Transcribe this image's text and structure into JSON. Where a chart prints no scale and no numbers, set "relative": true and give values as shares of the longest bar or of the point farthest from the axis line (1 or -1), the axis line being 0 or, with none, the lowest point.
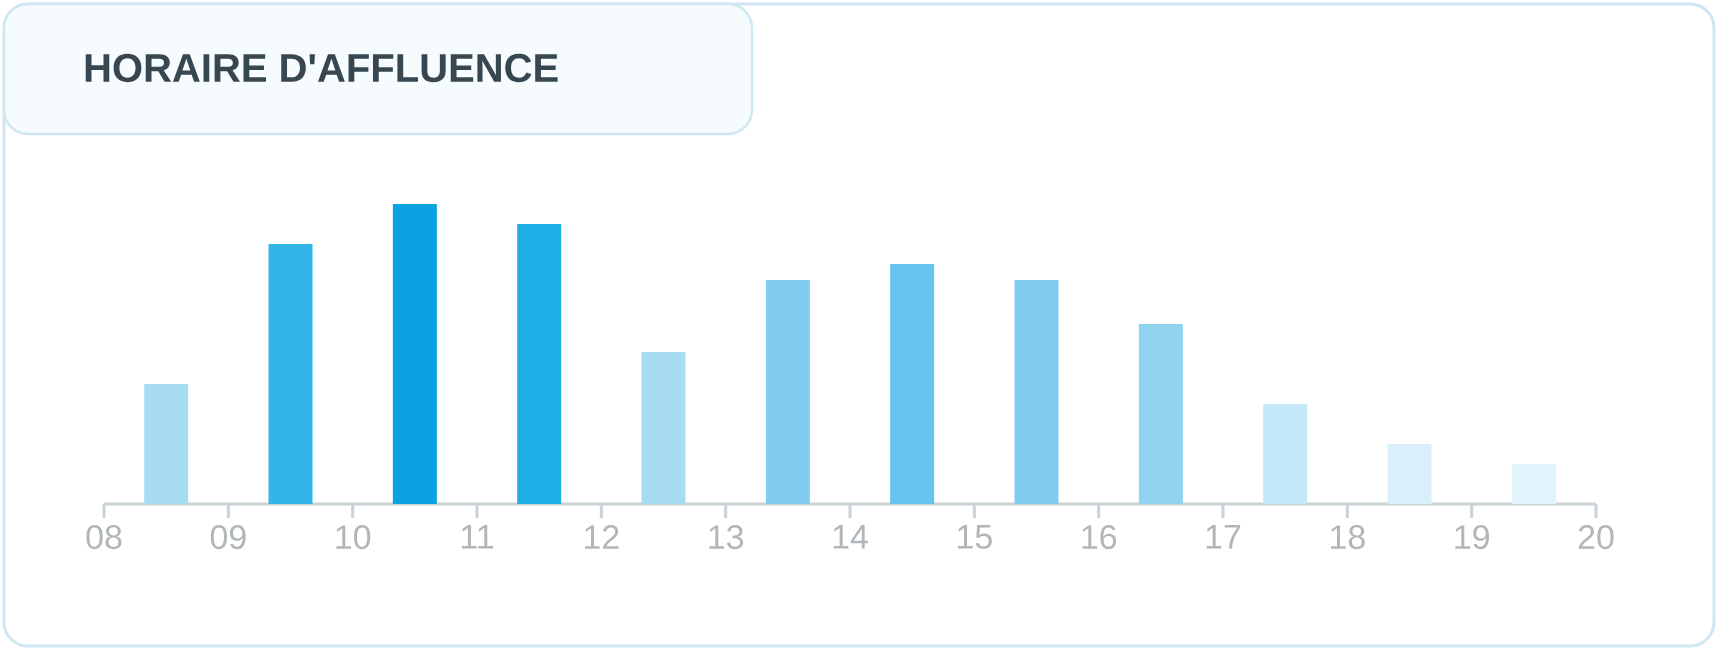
{
  "chart_data": {
    "type": "bar",
    "title": "HORAIRE D'AFFLUENCE",
    "relative": true,
    "x": [
      8.5,
      9.5,
      10.5,
      11.5,
      12.5,
      13.5,
      14.5,
      15.5,
      16.5,
      17.5,
      18.5,
      19.5
    ],
    "values": [
      0.4,
      0.867,
      1,
      0.933,
      0.507,
      0.747,
      0.8,
      0.747,
      0.6,
      0.333,
      0.2,
      0.133
    ],
    "colors": [
      "#a8dcf2",
      "#33b5e8",
      "#0aa2e0",
      "#1eaee6",
      "#a8dcf2",
      "#80cdef",
      "#66c5ee",
      "#80cdef",
      "#8fd3f0",
      "#c5e8f8",
      "#d9f0fa",
      "#e3f3fb"
    ],
    "xlim": [
      8,
      20
    ],
    "xticks": [
      {
        "value": 8,
        "label": "08"
      },
      {
        "value": 9,
        "label": "09"
      },
      10,
      11,
      12,
      13,
      14,
      15,
      16,
      17,
      18,
      19,
      20
    ]
  }
}
